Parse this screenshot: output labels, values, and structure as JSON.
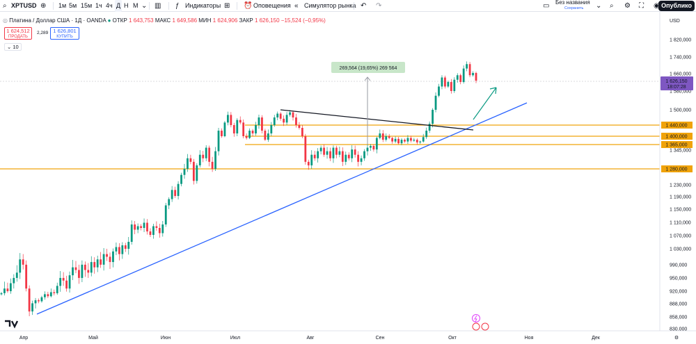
{
  "toolbar": {
    "symbol": "XPTUSD",
    "timeframes": [
      "1м",
      "5м",
      "15м",
      "1ч",
      "4ч",
      "Д",
      "Н",
      "М"
    ],
    "active_timeframe": "Д",
    "indicators_label": "Индикаторы",
    "alerts_label": "Оповещения",
    "replay_label": "Симулятор рынка",
    "layout_name": "Без названия",
    "layout_status": "Сохранить",
    "publish_label": "Опублико"
  },
  "legend": {
    "title": "Платина / Доллар США · 1Д · OANDA",
    "open_label": "ОТКР",
    "open": "1 643,753",
    "high_label": "МАКС",
    "high": "1 649,586",
    "low_label": "МИН",
    "low": "1 624,906",
    "close_label": "ЗАКР",
    "close": "1 626,150",
    "change": "−15,524 (−0,95%)",
    "sell_price": "1 624,512",
    "sell_label": "ПРОДАТЬ",
    "spread": "2,289",
    "buy_price": "1 626,801",
    "buy_label": "КУПИТЬ",
    "indicator_count": "10"
  },
  "price_axis": {
    "currency": "USD",
    "ticks": [
      "1 820,000",
      "1 740,000",
      "1 660,000",
      "1 580,000",
      "1 500,000",
      "1 450,000",
      "1 345,000",
      "1 280,000",
      "1 230,000",
      "1 190,000",
      "1 150,000",
      "1 110,000",
      "1 070,000",
      "1 030,000",
      "990,000",
      "950,000",
      "920,000",
      "888,000",
      "858,000",
      "830,000"
    ],
    "current_price": "1 626,150",
    "countdown": "18:07:28",
    "level_labels": [
      "1 440,000",
      "1 400,000",
      "1 365,000",
      "1 280,000"
    ]
  },
  "time_axis": {
    "labels": [
      "Апр",
      "Май",
      "Июн",
      "Июл",
      "Авг",
      "Сен",
      "Окт",
      "Ноя",
      "Дек"
    ]
  },
  "measure_label": "269,564 (19,65%) 269 564",
  "colors": {
    "up": "#089981",
    "down": "#f23645",
    "level": "#f0a30a",
    "trend": "#2962ff",
    "accent": "#2962ff",
    "current": "#7e57c2"
  },
  "chart_data": {
    "type": "candlestick",
    "title": "Платина / Доллар США · 1Д · OANDA",
    "ylim": [
      830,
      1880
    ],
    "horizontal_levels": [
      1440,
      1400,
      1365,
      1280
    ],
    "candles_close": [
      940,
      955,
      950,
      965,
      975,
      985,
      1010,
      1000,
      955,
      870,
      890,
      905,
      900,
      920,
      935,
      925,
      945,
      940,
      960,
      975,
      970,
      955,
      980,
      995,
      990,
      975,
      1000,
      990,
      985,
      1005,
      995,
      1010,
      1000,
      1020,
      1015,
      1005,
      1025,
      1035,
      1020,
      1040,
      1030,
      1050,
      1100,
      1085,
      1095,
      1090,
      1105,
      1080,
      1070,
      1095,
      1090,
      1075,
      1100,
      1160,
      1180,
      1210,
      1190,
      1230,
      1260,
      1280,
      1310,
      1300,
      1240,
      1290,
      1320,
      1310,
      1340,
      1300,
      1280,
      1330,
      1420,
      1400,
      1450,
      1480,
      1440,
      1410,
      1460,
      1450,
      1400,
      1390,
      1420,
      1410,
      1440,
      1470,
      1420,
      1380,
      1410,
      1440,
      1470,
      1485,
      1465,
      1450,
      1480,
      1490,
      1470,
      1440,
      1430,
      1400,
      1300,
      1290,
      1320,
      1310,
      1330,
      1340,
      1320,
      1330,
      1310,
      1340,
      1320,
      1330,
      1300,
      1320,
      1310,
      1335,
      1320,
      1300,
      1310,
      1330,
      1340,
      1345,
      1335,
      1390,
      1410,
      1380,
      1400,
      1390,
      1370,
      1385,
      1360,
      1380,
      1370,
      1390,
      1375,
      1380,
      1365,
      1370,
      1395,
      1420,
      1445,
      1500,
      1560,
      1600,
      1640,
      1600,
      1620,
      1580,
      1630,
      1650,
      1620,
      1680,
      1700,
      1650,
      1660,
      1626
    ],
    "annotations": [
      "269,564 (19,65%) 269 564"
    ]
  }
}
